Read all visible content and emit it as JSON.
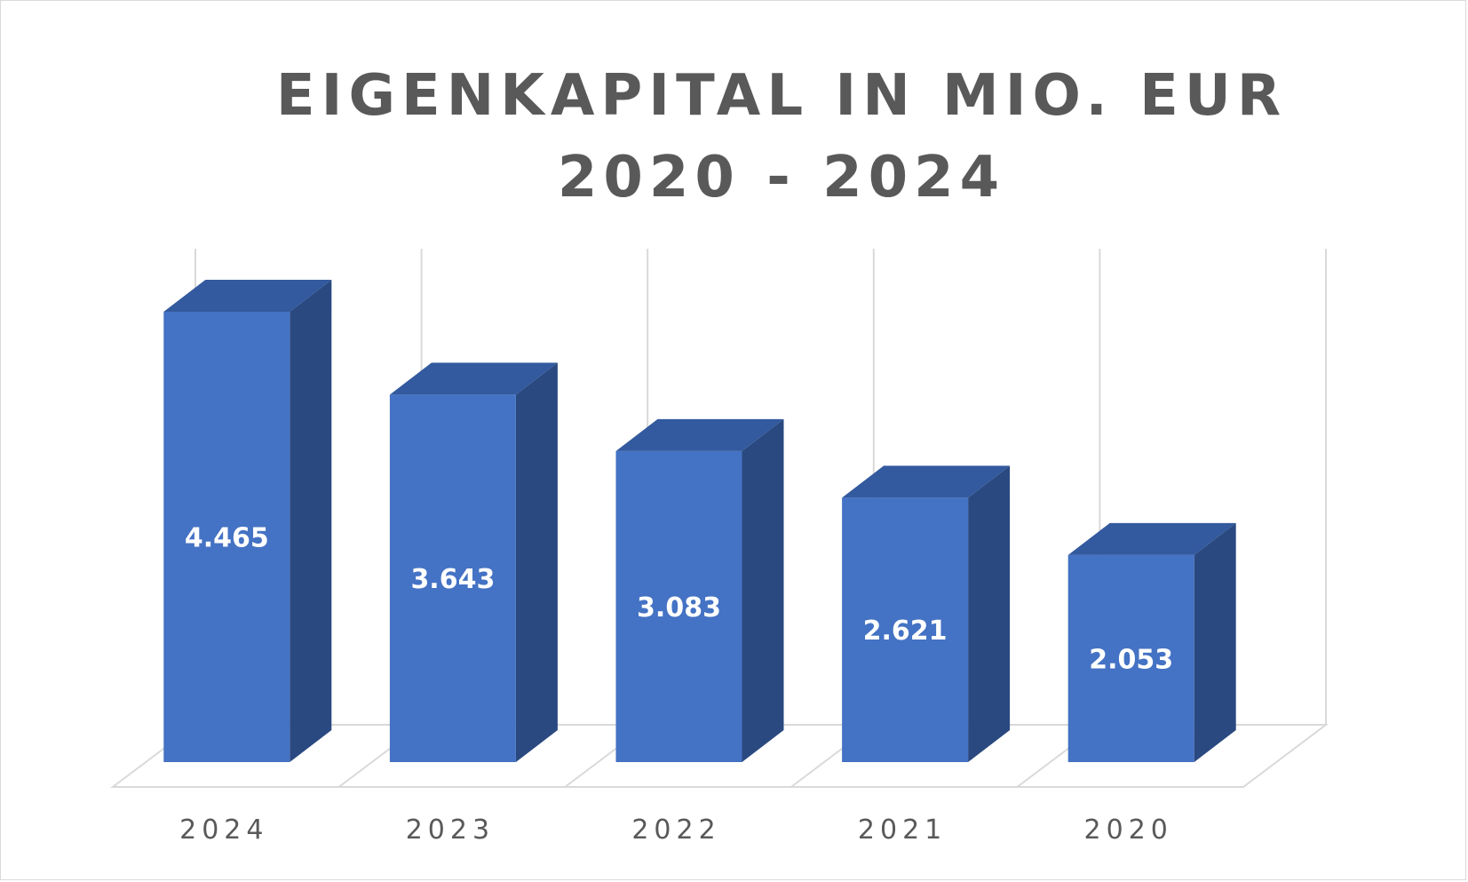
{
  "chart_data": {
    "type": "bar",
    "title": "EIGENKAPITAL IN MIO. EUR 2020 - 2024",
    "categories": [
      "2024",
      "2023",
      "2022",
      "2021",
      "2020"
    ],
    "series": [
      {
        "values": [
          4465,
          3643,
          3083,
          2621,
          2053
        ],
        "value_labels": [
          "4.465",
          "3.643",
          "3.083",
          "2.621",
          "2.053"
        ]
      }
    ],
    "three_d": true,
    "grid": "vertical",
    "legend": "none",
    "colors": {
      "bar_front": "#4472C4",
      "bar_side": "#2A4980",
      "bar_top": "#335A9E",
      "grid": "#D9D9D9",
      "label": "#FFFFFF",
      "axis_text": "#595959"
    }
  }
}
